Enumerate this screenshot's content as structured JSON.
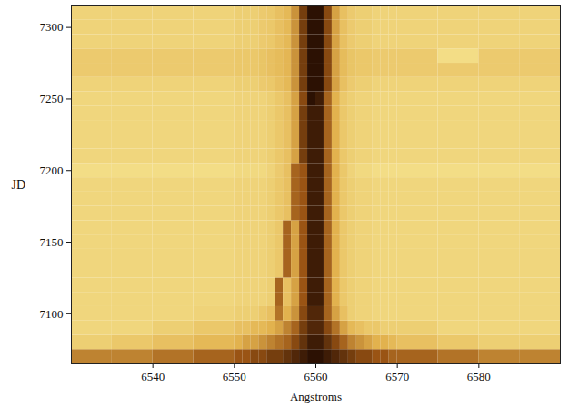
{
  "chart_data": {
    "type": "heatmap",
    "x_label": "Angstroms",
    "y_label": "JD",
    "xlim": [
      6530,
      6590
    ],
    "xticks": [
      6540,
      6550,
      6560,
      6570,
      6580
    ],
    "ylim": [
      7065,
      7315
    ],
    "yticks": [
      7100,
      7150,
      7200,
      7250,
      7300
    ],
    "x_edges": [
      6530,
      6535,
      6540,
      6545,
      6550,
      6551,
      6552,
      6553,
      6554,
      6555,
      6556,
      6557,
      6558,
      6559,
      6560,
      6561,
      6562,
      6563,
      6564,
      6565,
      6566,
      6567,
      6568,
      6569,
      6570,
      6575,
      6580,
      6585,
      6590
    ],
    "y_edges": [
      7065,
      7075,
      7085,
      7095,
      7105,
      7115,
      7125,
      7135,
      7145,
      7155,
      7165,
      7175,
      7185,
      7195,
      7205,
      7215,
      7225,
      7235,
      7245,
      7255,
      7265,
      7275,
      7285,
      7295,
      7305,
      7315
    ],
    "cells": [
      [
        0.5,
        0.5,
        0.55,
        0.6,
        0.65,
        0.65,
        0.7,
        0.7,
        0.75,
        0.75,
        0.8,
        0.85,
        0.9,
        0.95,
        0.95,
        0.9,
        0.85,
        0.8,
        0.75,
        0.7,
        0.7,
        0.65,
        0.65,
        0.6,
        0.6,
        0.55,
        0.5,
        0.5
      ],
      [
        0.15,
        0.2,
        0.25,
        0.3,
        0.35,
        0.4,
        0.4,
        0.45,
        0.5,
        0.55,
        0.6,
        0.7,
        0.8,
        0.9,
        0.9,
        0.8,
        0.7,
        0.6,
        0.5,
        0.45,
        0.4,
        0.35,
        0.35,
        0.3,
        0.25,
        0.2,
        0.15,
        0.15
      ],
      [
        0.1,
        0.1,
        0.15,
        0.2,
        0.25,
        0.25,
        0.3,
        0.3,
        0.35,
        0.4,
        0.5,
        0.6,
        0.75,
        0.85,
        0.85,
        0.7,
        0.55,
        0.4,
        0.3,
        0.25,
        0.2,
        0.2,
        0.15,
        0.15,
        0.15,
        0.1,
        0.1,
        0.1
      ],
      [
        0.1,
        0.1,
        0.1,
        0.12,
        0.15,
        0.15,
        0.15,
        0.2,
        0.25,
        0.55,
        0.35,
        0.45,
        0.7,
        0.85,
        0.85,
        0.6,
        0.4,
        0.25,
        0.15,
        0.12,
        0.12,
        0.1,
        0.1,
        0.1,
        0.1,
        0.1,
        0.1,
        0.1
      ],
      [
        0.1,
        0.1,
        0.1,
        0.1,
        0.12,
        0.12,
        0.12,
        0.12,
        0.15,
        0.6,
        0.25,
        0.4,
        0.65,
        0.9,
        0.9,
        0.6,
        0.35,
        0.2,
        0.15,
        0.12,
        0.12,
        0.1,
        0.1,
        0.1,
        0.1,
        0.1,
        0.1,
        0.1
      ],
      [
        0.1,
        0.1,
        0.1,
        0.1,
        0.12,
        0.12,
        0.12,
        0.12,
        0.15,
        0.6,
        0.25,
        0.4,
        0.65,
        0.9,
        0.9,
        0.6,
        0.35,
        0.2,
        0.15,
        0.12,
        0.12,
        0.1,
        0.1,
        0.1,
        0.1,
        0.1,
        0.1,
        0.1
      ],
      [
        0.1,
        0.1,
        0.1,
        0.1,
        0.12,
        0.12,
        0.12,
        0.12,
        0.15,
        0.2,
        0.6,
        0.4,
        0.65,
        0.9,
        0.9,
        0.6,
        0.35,
        0.2,
        0.15,
        0.12,
        0.12,
        0.1,
        0.1,
        0.1,
        0.1,
        0.1,
        0.1,
        0.1
      ],
      [
        0.1,
        0.1,
        0.1,
        0.1,
        0.12,
        0.12,
        0.12,
        0.12,
        0.15,
        0.2,
        0.6,
        0.4,
        0.65,
        0.9,
        0.9,
        0.6,
        0.35,
        0.2,
        0.15,
        0.12,
        0.12,
        0.1,
        0.1,
        0.1,
        0.1,
        0.1,
        0.1,
        0.1
      ],
      [
        0.1,
        0.1,
        0.1,
        0.1,
        0.12,
        0.12,
        0.12,
        0.12,
        0.15,
        0.2,
        0.6,
        0.4,
        0.65,
        0.9,
        0.9,
        0.6,
        0.35,
        0.2,
        0.15,
        0.12,
        0.12,
        0.1,
        0.1,
        0.1,
        0.1,
        0.1,
        0.1,
        0.1
      ],
      [
        0.1,
        0.1,
        0.1,
        0.1,
        0.12,
        0.12,
        0.12,
        0.12,
        0.15,
        0.2,
        0.6,
        0.4,
        0.65,
        0.9,
        0.9,
        0.6,
        0.35,
        0.2,
        0.15,
        0.12,
        0.12,
        0.1,
        0.1,
        0.1,
        0.1,
        0.1,
        0.1,
        0.1
      ],
      [
        0.1,
        0.1,
        0.1,
        0.1,
        0.12,
        0.12,
        0.12,
        0.12,
        0.15,
        0.2,
        0.25,
        0.6,
        0.65,
        0.9,
        0.9,
        0.6,
        0.35,
        0.2,
        0.15,
        0.12,
        0.12,
        0.1,
        0.1,
        0.1,
        0.1,
        0.1,
        0.1,
        0.1
      ],
      [
        0.1,
        0.1,
        0.1,
        0.1,
        0.12,
        0.12,
        0.12,
        0.12,
        0.15,
        0.2,
        0.25,
        0.6,
        0.65,
        0.9,
        0.9,
        0.6,
        0.35,
        0.2,
        0.15,
        0.12,
        0.12,
        0.1,
        0.1,
        0.1,
        0.1,
        0.1,
        0.1,
        0.1
      ],
      [
        0.1,
        0.1,
        0.1,
        0.1,
        0.12,
        0.12,
        0.12,
        0.12,
        0.15,
        0.2,
        0.25,
        0.6,
        0.65,
        0.9,
        0.9,
        0.6,
        0.35,
        0.2,
        0.15,
        0.12,
        0.12,
        0.1,
        0.1,
        0.1,
        0.1,
        0.1,
        0.1,
        0.1
      ],
      [
        0.05,
        0.05,
        0.05,
        0.05,
        0.08,
        0.08,
        0.08,
        0.08,
        0.12,
        0.18,
        0.25,
        0.6,
        0.65,
        0.9,
        0.9,
        0.6,
        0.35,
        0.2,
        0.12,
        0.08,
        0.08,
        0.05,
        0.05,
        0.05,
        0.05,
        0.05,
        0.05,
        0.05
      ],
      [
        0.1,
        0.1,
        0.1,
        0.1,
        0.12,
        0.12,
        0.12,
        0.12,
        0.15,
        0.2,
        0.25,
        0.4,
        0.75,
        0.9,
        0.9,
        0.6,
        0.35,
        0.2,
        0.15,
        0.12,
        0.12,
        0.1,
        0.1,
        0.1,
        0.1,
        0.1,
        0.1,
        0.1
      ],
      [
        0.1,
        0.1,
        0.1,
        0.1,
        0.12,
        0.12,
        0.12,
        0.12,
        0.15,
        0.2,
        0.25,
        0.4,
        0.75,
        0.9,
        0.9,
        0.6,
        0.35,
        0.2,
        0.15,
        0.12,
        0.12,
        0.1,
        0.1,
        0.1,
        0.1,
        0.1,
        0.1,
        0.1
      ],
      [
        0.1,
        0.1,
        0.1,
        0.1,
        0.12,
        0.12,
        0.12,
        0.12,
        0.15,
        0.2,
        0.25,
        0.4,
        0.75,
        0.9,
        0.9,
        0.6,
        0.35,
        0.2,
        0.15,
        0.12,
        0.12,
        0.1,
        0.1,
        0.1,
        0.1,
        0.1,
        0.1,
        0.1
      ],
      [
        0.1,
        0.1,
        0.1,
        0.1,
        0.12,
        0.12,
        0.12,
        0.12,
        0.15,
        0.2,
        0.25,
        0.4,
        0.75,
        0.9,
        0.9,
        0.6,
        0.35,
        0.2,
        0.15,
        0.12,
        0.12,
        0.1,
        0.1,
        0.1,
        0.1,
        0.1,
        0.1,
        0.1
      ],
      [
        0.1,
        0.1,
        0.1,
        0.1,
        0.12,
        0.12,
        0.12,
        0.12,
        0.15,
        0.2,
        0.25,
        0.4,
        0.7,
        0.95,
        0.9,
        0.6,
        0.35,
        0.2,
        0.15,
        0.12,
        0.12,
        0.1,
        0.1,
        0.1,
        0.1,
        0.1,
        0.1,
        0.1
      ],
      [
        0.12,
        0.12,
        0.12,
        0.12,
        0.15,
        0.15,
        0.15,
        0.18,
        0.2,
        0.25,
        0.3,
        0.45,
        0.75,
        0.95,
        0.95,
        0.7,
        0.4,
        0.25,
        0.18,
        0.15,
        0.15,
        0.12,
        0.12,
        0.12,
        0.12,
        0.12,
        0.12,
        0.12
      ],
      [
        0.18,
        0.18,
        0.18,
        0.18,
        0.2,
        0.2,
        0.2,
        0.22,
        0.25,
        0.28,
        0.32,
        0.45,
        0.75,
        0.95,
        0.95,
        0.7,
        0.4,
        0.28,
        0.22,
        0.2,
        0.2,
        0.18,
        0.18,
        0.18,
        0.18,
        0.18,
        0.18,
        0.18
      ],
      [
        0.18,
        0.18,
        0.18,
        0.18,
        0.2,
        0.2,
        0.2,
        0.22,
        0.25,
        0.28,
        0.32,
        0.45,
        0.75,
        0.95,
        0.95,
        0.7,
        0.4,
        0.28,
        0.22,
        0.2,
        0.2,
        0.18,
        0.18,
        0.18,
        0.18,
        0.05,
        0.18,
        0.18
      ],
      [
        0.12,
        0.12,
        0.12,
        0.12,
        0.15,
        0.15,
        0.15,
        0.18,
        0.2,
        0.25,
        0.3,
        0.45,
        0.75,
        0.95,
        0.95,
        0.7,
        0.4,
        0.25,
        0.18,
        0.15,
        0.15,
        0.12,
        0.12,
        0.12,
        0.12,
        0.12,
        0.12,
        0.12
      ],
      [
        0.12,
        0.12,
        0.12,
        0.12,
        0.15,
        0.15,
        0.15,
        0.18,
        0.2,
        0.25,
        0.3,
        0.45,
        0.75,
        0.95,
        0.95,
        0.7,
        0.4,
        0.25,
        0.18,
        0.15,
        0.15,
        0.12,
        0.12,
        0.12,
        0.12,
        0.12,
        0.12,
        0.12
      ],
      [
        0.12,
        0.12,
        0.12,
        0.12,
        0.15,
        0.15,
        0.15,
        0.18,
        0.2,
        0.25,
        0.3,
        0.45,
        0.75,
        0.95,
        0.95,
        0.7,
        0.4,
        0.25,
        0.18,
        0.15,
        0.15,
        0.12,
        0.12,
        0.12,
        0.12,
        0.12,
        0.12,
        0.12
      ]
    ]
  }
}
